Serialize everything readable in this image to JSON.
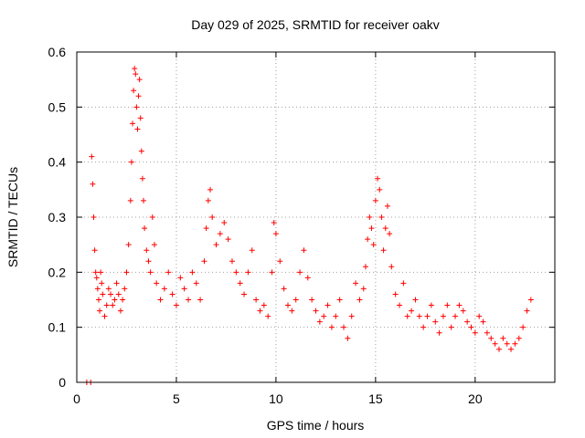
{
  "chart_data": {
    "type": "scatter",
    "title": "Day 029 of 2025, SRMTID for receiver oakv",
    "xlabel": "GPS time / hours",
    "ylabel": "SRMTID / TECUs",
    "xlim": [
      0,
      24
    ],
    "ylim": [
      0,
      0.6
    ],
    "xticks": [
      0,
      5,
      10,
      15,
      20
    ],
    "yticks": [
      0,
      0.1,
      0.2,
      0.3,
      0.4,
      0.5,
      0.6
    ],
    "grid": true,
    "marker": "plus",
    "color": "#ff0000",
    "series": [
      {
        "name": "SRMTID",
        "x": [
          0.5,
          0.7,
          0.75,
          0.8,
          0.85,
          0.9,
          0.95,
          1.0,
          1.05,
          1.1,
          1.15,
          1.2,
          1.25,
          1.3,
          1.4,
          1.5,
          1.6,
          1.7,
          1.8,
          1.9,
          2.0,
          2.1,
          2.2,
          2.3,
          2.4,
          2.5,
          2.6,
          2.7,
          2.75,
          2.8,
          2.85,
          2.9,
          2.95,
          3.0,
          3.05,
          3.1,
          3.15,
          3.2,
          3.25,
          3.3,
          3.35,
          3.4,
          3.5,
          3.6,
          3.7,
          3.8,
          3.9,
          4.0,
          4.2,
          4.4,
          4.6,
          4.8,
          5.0,
          5.2,
          5.4,
          5.6,
          5.8,
          6.0,
          6.2,
          6.4,
          6.5,
          6.6,
          6.7,
          6.8,
          7.0,
          7.2,
          7.4,
          7.6,
          7.8,
          8.0,
          8.2,
          8.4,
          8.6,
          8.8,
          9.0,
          9.2,
          9.4,
          9.6,
          9.8,
          9.9,
          10.0,
          10.2,
          10.4,
          10.6,
          10.8,
          11.0,
          11.2,
          11.4,
          11.6,
          11.8,
          12.0,
          12.2,
          12.4,
          12.6,
          12.8,
          13.0,
          13.2,
          13.4,
          13.6,
          13.8,
          14.0,
          14.2,
          14.4,
          14.5,
          14.6,
          14.7,
          14.8,
          14.9,
          15.0,
          15.1,
          15.2,
          15.3,
          15.4,
          15.5,
          15.6,
          15.7,
          15.8,
          16.0,
          16.2,
          16.4,
          16.6,
          16.8,
          17.0,
          17.2,
          17.4,
          17.6,
          17.8,
          18.0,
          18.2,
          18.4,
          18.6,
          18.8,
          19.0,
          19.2,
          19.4,
          19.6,
          19.8,
          20.0,
          20.2,
          20.4,
          20.6,
          20.8,
          21.0,
          21.2,
          21.4,
          21.6,
          21.8,
          22.0,
          22.2,
          22.4,
          22.6,
          22.8
        ],
        "y": [
          0.0,
          0.0,
          0.41,
          0.36,
          0.3,
          0.24,
          0.2,
          0.19,
          0.17,
          0.15,
          0.13,
          0.2,
          0.18,
          0.16,
          0.12,
          0.14,
          0.17,
          0.16,
          0.14,
          0.15,
          0.18,
          0.16,
          0.13,
          0.15,
          0.17,
          0.2,
          0.25,
          0.33,
          0.4,
          0.47,
          0.53,
          0.57,
          0.56,
          0.5,
          0.46,
          0.52,
          0.55,
          0.48,
          0.42,
          0.37,
          0.33,
          0.28,
          0.24,
          0.22,
          0.2,
          0.3,
          0.25,
          0.18,
          0.15,
          0.17,
          0.2,
          0.16,
          0.14,
          0.19,
          0.17,
          0.15,
          0.2,
          0.18,
          0.15,
          0.22,
          0.28,
          0.33,
          0.35,
          0.3,
          0.25,
          0.27,
          0.29,
          0.26,
          0.22,
          0.2,
          0.18,
          0.16,
          0.2,
          0.24,
          0.15,
          0.13,
          0.14,
          0.12,
          0.2,
          0.29,
          0.27,
          0.22,
          0.17,
          0.14,
          0.13,
          0.15,
          0.2,
          0.24,
          0.19,
          0.15,
          0.13,
          0.11,
          0.12,
          0.14,
          0.1,
          0.12,
          0.15,
          0.1,
          0.08,
          0.12,
          0.18,
          0.15,
          0.17,
          0.21,
          0.26,
          0.3,
          0.28,
          0.25,
          0.33,
          0.37,
          0.35,
          0.3,
          0.24,
          0.28,
          0.32,
          0.27,
          0.21,
          0.16,
          0.14,
          0.18,
          0.12,
          0.13,
          0.15,
          0.12,
          0.1,
          0.12,
          0.14,
          0.11,
          0.09,
          0.12,
          0.14,
          0.1,
          0.12,
          0.14,
          0.13,
          0.11,
          0.1,
          0.09,
          0.12,
          0.11,
          0.09,
          0.08,
          0.07,
          0.06,
          0.08,
          0.07,
          0.06,
          0.07,
          0.08,
          0.1,
          0.13,
          0.15
        ]
      }
    ]
  }
}
